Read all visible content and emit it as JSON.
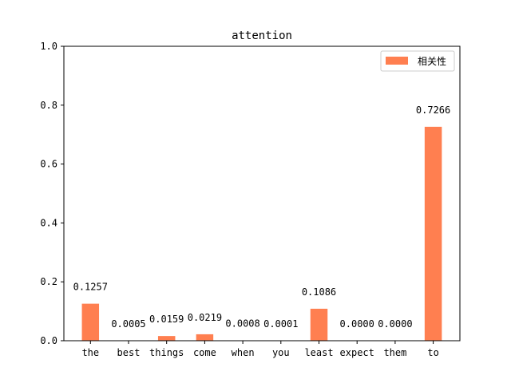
{
  "chart_data": {
    "type": "bar",
    "title": "attention",
    "xlabel": "",
    "ylabel": "",
    "categories": [
      "the",
      "best",
      "things",
      "come",
      "when",
      "you",
      "least",
      "expect",
      "them",
      "to"
    ],
    "series": [
      {
        "name": "相关性",
        "values": [
          0.1257,
          0.0005,
          0.0159,
          0.0219,
          0.0008,
          0.0001,
          0.1086,
          0.0,
          0.0,
          0.7266
        ],
        "labels": [
          "0.1257",
          "0.0005",
          "0.0159",
          "0.0219",
          "0.0008",
          "0.0001",
          "0.1086",
          "0.0000",
          "0.0000",
          "0.7266"
        ],
        "color": "#ff7f50"
      }
    ],
    "ylim": [
      0,
      1.0
    ],
    "yticks": [
      "0.0",
      "0.2",
      "0.4",
      "0.6",
      "0.8",
      "1.0"
    ],
    "grid": false,
    "legend_position": "top-right"
  }
}
